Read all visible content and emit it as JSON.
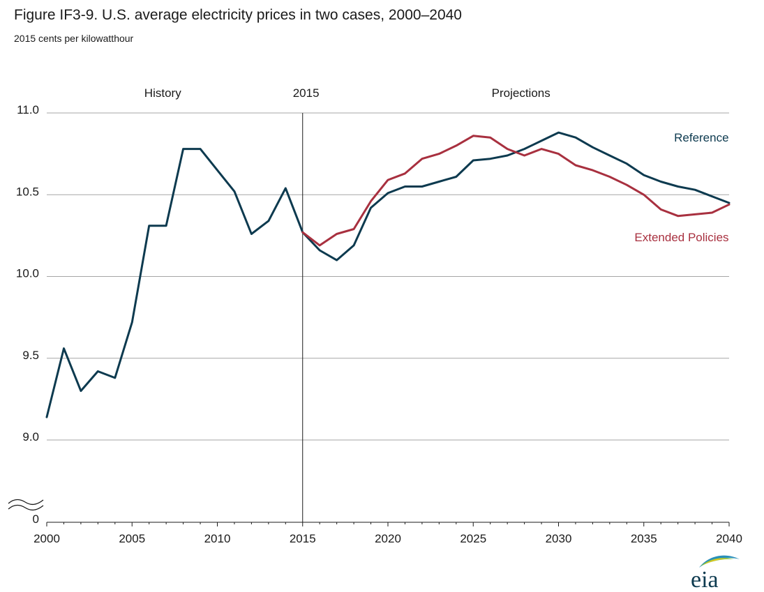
{
  "title": "Figure IF3-9. U.S. average electricity prices in two cases, 2000–2040",
  "subtitle": "2015 cents per kilowatthour",
  "logo_text": "eia",
  "chart_data": {
    "type": "line",
    "title": "Figure IF3-9. U.S. average electricity prices in two cases, 2000–2040",
    "ylabel": "2015 cents per kilowatthour",
    "xlim": [
      2000,
      2040
    ],
    "ylim": [
      9.0,
      11.0
    ],
    "y_axis_break": true,
    "y_break_label": "0",
    "x_ticks": [
      "2000",
      "2005",
      "2010",
      "2015",
      "2020",
      "2025",
      "2030",
      "2035",
      "2040"
    ],
    "x_tick_values": [
      2000,
      2005,
      2010,
      2015,
      2020,
      2025,
      2030,
      2035,
      2040
    ],
    "y_ticks": [
      "9.0",
      "9.5",
      "10.0",
      "10.5",
      "11.0"
    ],
    "y_tick_values": [
      9.0,
      9.5,
      10.0,
      10.5,
      11.0
    ],
    "grid": true,
    "divider_year": 2015,
    "region_labels": [
      {
        "text": "History",
        "year": 2006.8
      },
      {
        "text": "2015",
        "year": 2015.2
      },
      {
        "text": "Projections",
        "year": 2027.8
      }
    ],
    "series": [
      {
        "name": "Reference",
        "color": "#0d3a4f",
        "label_year": 2039.9,
        "label_value": 10.85,
        "x": [
          2000,
          2001,
          2002,
          2003,
          2004,
          2005,
          2006,
          2007,
          2008,
          2009,
          2010,
          2011,
          2012,
          2013,
          2014,
          2015,
          2016,
          2017,
          2018,
          2019,
          2020,
          2021,
          2022,
          2023,
          2024,
          2025,
          2026,
          2027,
          2028,
          2029,
          2030,
          2031,
          2032,
          2033,
          2034,
          2035,
          2036,
          2037,
          2038,
          2039,
          2040
        ],
        "values": [
          9.14,
          9.56,
          9.3,
          9.42,
          9.38,
          9.72,
          10.31,
          10.31,
          10.78,
          10.78,
          10.65,
          10.52,
          10.26,
          10.34,
          10.54,
          10.27,
          10.16,
          10.1,
          10.19,
          10.42,
          10.51,
          10.55,
          10.55,
          10.58,
          10.61,
          10.71,
          10.72,
          10.74,
          10.78,
          10.83,
          10.88,
          10.85,
          10.79,
          10.74,
          10.69,
          10.62,
          10.58,
          10.55,
          10.53,
          10.49,
          10.45
        ]
      },
      {
        "name": "Extended Policies",
        "color": "#a8303f",
        "label_year": 2039.9,
        "label_value": 10.24,
        "x": [
          2015,
          2016,
          2017,
          2018,
          2019,
          2020,
          2021,
          2022,
          2023,
          2024,
          2025,
          2026,
          2027,
          2028,
          2029,
          2030,
          2031,
          2032,
          2033,
          2034,
          2035,
          2036,
          2037,
          2038,
          2039,
          2040
        ],
        "values": [
          10.27,
          10.19,
          10.26,
          10.29,
          10.46,
          10.59,
          10.63,
          10.72,
          10.75,
          10.8,
          10.86,
          10.85,
          10.78,
          10.74,
          10.78,
          10.75,
          10.68,
          10.65,
          10.61,
          10.56,
          10.5,
          10.41,
          10.37,
          10.38,
          10.39,
          10.44
        ]
      }
    ]
  }
}
